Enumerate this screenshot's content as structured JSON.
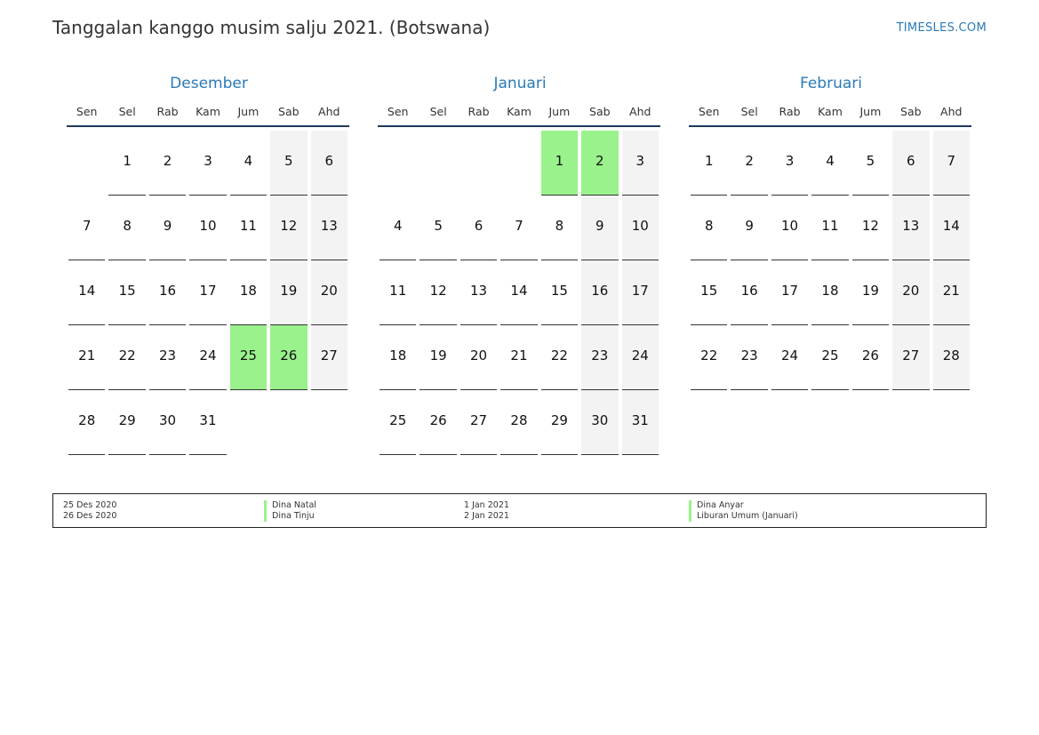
{
  "header": {
    "title": "Tanggalan kanggo musim salju 2021. (Botswana)",
    "site": "TIMESLES.COM"
  },
  "weekdays": [
    "Sen",
    "Sel",
    "Rab",
    "Kam",
    "Jum",
    "Sab",
    "Ahd"
  ],
  "months": [
    {
      "name": "Desember",
      "lead": 1,
      "days": 31,
      "holidays": [
        25,
        26
      ]
    },
    {
      "name": "Januari",
      "lead": 4,
      "days": 31,
      "holidays": [
        1,
        2
      ]
    },
    {
      "name": "Februari",
      "lead": 0,
      "days": 28,
      "holidays": []
    }
  ],
  "legend": [
    {
      "date": "25 Des 2020",
      "name": "Dina Natal"
    },
    {
      "date": "26 Des 2020",
      "name": "Dina Tinju"
    },
    {
      "date": "1 Jan 2021",
      "name": "Dina Anyar"
    },
    {
      "date": "2 Jan 2021",
      "name": "Liburan Umum (Januari)"
    }
  ],
  "colors": {
    "accent": "#2a7ab9",
    "holiday": "#99f28b",
    "weekend": "#f3f3f3"
  }
}
